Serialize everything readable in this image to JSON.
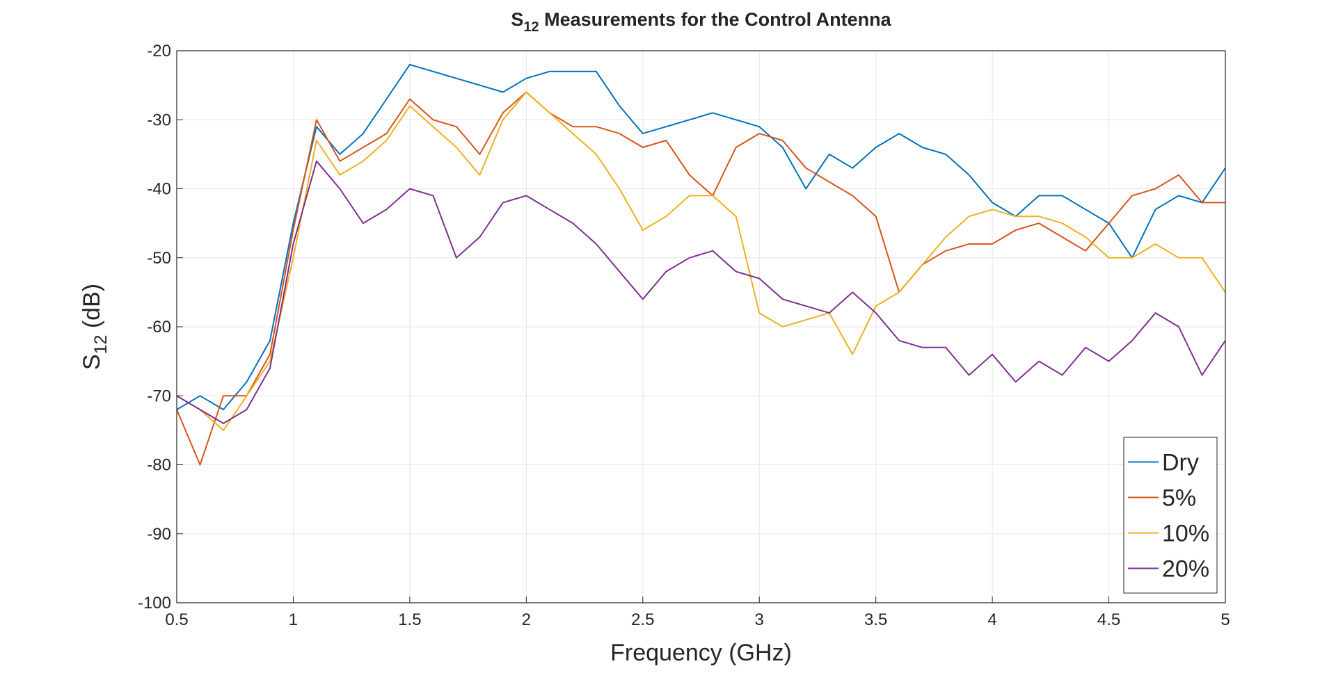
{
  "chart_data": {
    "type": "line",
    "title": {
      "main": "S",
      "sub": "12",
      "rest": " Measurements for the Control Antenna"
    },
    "xlabel": "Frequency (GHz)",
    "ylabel": {
      "main": "S",
      "sub": "12",
      "rest": " (dB)"
    },
    "x": [
      0.5,
      0.6,
      0.7,
      0.8,
      0.9,
      1.0,
      1.1,
      1.2,
      1.3,
      1.4,
      1.5,
      1.6,
      1.7,
      1.8,
      1.9,
      2.0,
      2.1,
      2.2,
      2.3,
      2.4,
      2.5,
      2.6,
      2.7,
      2.8,
      2.9,
      3.0,
      3.1,
      3.2,
      3.3,
      3.4,
      3.5,
      3.6,
      3.7,
      3.8,
      3.9,
      4.0,
      4.1,
      4.2,
      4.3,
      4.4,
      4.5,
      4.6,
      4.7,
      4.8,
      4.9,
      5.0
    ],
    "series": [
      {
        "name": "Dry",
        "color": "#0072BD",
        "values": [
          -72,
          -70,
          -72,
          -68,
          -62,
          -45,
          -31,
          -35,
          -32,
          -27,
          -22,
          -23,
          -24,
          -25,
          -26,
          -24,
          -23,
          -23,
          -23,
          -28,
          -32,
          -31,
          -30,
          -29,
          -30,
          -31,
          -34,
          -40,
          -35,
          -37,
          -34,
          -32,
          -34,
          -35,
          -38,
          -42,
          -44,
          -41,
          -41,
          -43,
          -45,
          -50,
          -43,
          -41,
          -42,
          -37
        ]
      },
      {
        "name": "5%",
        "color": "#D95319",
        "values": [
          -72,
          -80,
          -70,
          -70,
          -64,
          -46,
          -30,
          -36,
          -34,
          -32,
          -27,
          -30,
          -31,
          -35,
          -29,
          -26,
          -29,
          -31,
          -31,
          -32,
          -34,
          -33,
          -38,
          -41,
          -34,
          -32,
          -33,
          -37,
          -39,
          -41,
          -44,
          -55,
          -51,
          -49,
          -48,
          -48,
          -46,
          -45,
          -47,
          -49,
          -45,
          -41,
          -40,
          -38,
          -42,
          -42
        ]
      },
      {
        "name": "10%",
        "color": "#EDB120",
        "values": [
          -70,
          -72,
          -75,
          -70,
          -65,
          -50,
          -33,
          -38,
          -36,
          -33,
          -28,
          -31,
          -34,
          -38,
          -30,
          -26,
          -29,
          -32,
          -35,
          -40,
          -46,
          -44,
          -41,
          -41,
          -44,
          -58,
          -60,
          -59,
          -58,
          -64,
          -57,
          -55,
          -51,
          -47,
          -44,
          -43,
          -44,
          -44,
          -45,
          -47,
          -50,
          -50,
          -48,
          -50,
          -50,
          -55
        ]
      },
      {
        "name": "20%",
        "color": "#7E2F8E",
        "values": [
          -70,
          -72,
          -74,
          -72,
          -66,
          -48,
          -36,
          -40,
          -45,
          -43,
          -40,
          -41,
          -50,
          -47,
          -42,
          -41,
          -43,
          -45,
          -48,
          -52,
          -56,
          -52,
          -50,
          -49,
          -52,
          -53,
          -56,
          -57,
          -58,
          -55,
          -58,
          -62,
          -63,
          -63,
          -67,
          -64,
          -68,
          -65,
          -67,
          -63,
          -65,
          -62,
          -58,
          -60,
          -67,
          -62
        ]
      }
    ],
    "xlim": [
      0.5,
      5
    ],
    "xticks": [
      0.5,
      1,
      1.5,
      2,
      2.5,
      3,
      3.5,
      4,
      4.5,
      5
    ],
    "ylim": [
      -100,
      -20
    ],
    "yticks": [
      -100,
      -90,
      -80,
      -70,
      -60,
      -50,
      -40,
      -30,
      -20
    ],
    "grid": true,
    "legend": "southeast"
  }
}
